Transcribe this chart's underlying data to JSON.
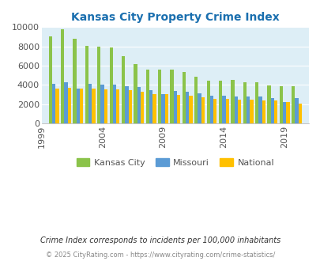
{
  "title": "Kansas City Property Crime Index",
  "title_color": "#1a6faf",
  "years": [
    2000,
    2001,
    2002,
    2003,
    2004,
    2005,
    2006,
    2007,
    2008,
    2009,
    2010,
    2011,
    2012,
    2013,
    2014,
    2015,
    2016,
    2017,
    2018,
    2019,
    2020
  ],
  "kansas_city": [
    9000,
    9800,
    8800,
    8050,
    8000,
    7900,
    7000,
    6200,
    5600,
    5600,
    5600,
    5300,
    4850,
    4450,
    4400,
    4550,
    4300,
    4300,
    3950,
    3900,
    3900
  ],
  "missouri": [
    4100,
    4250,
    3600,
    4100,
    4050,
    4000,
    3900,
    3750,
    3450,
    3050,
    3350,
    3250,
    3100,
    2900,
    2850,
    2750,
    2800,
    2750,
    2650,
    2200,
    2650
  ],
  "national": [
    3650,
    3700,
    3650,
    3600,
    3550,
    3500,
    3450,
    3250,
    3050,
    3000,
    2950,
    2850,
    2700,
    2550,
    2550,
    2500,
    2450,
    2400,
    2350,
    2200,
    2050
  ],
  "kc_color": "#8bc34a",
  "mo_color": "#5b9bd5",
  "nat_color": "#ffc000",
  "bg_color": "#ddeef6",
  "ylim": [
    0,
    10000
  ],
  "yticks": [
    0,
    2000,
    4000,
    6000,
    8000,
    10000
  ],
  "xtick_years": [
    1999,
    2004,
    2009,
    2014,
    2019
  ],
  "footnote1": "Crime Index corresponds to incidents per 100,000 inhabitants",
  "footnote2": "© 2025 CityRating.com - https://www.cityrating.com/crime-statistics/",
  "legend_labels": [
    "Kansas City",
    "Missouri",
    "National"
  ]
}
